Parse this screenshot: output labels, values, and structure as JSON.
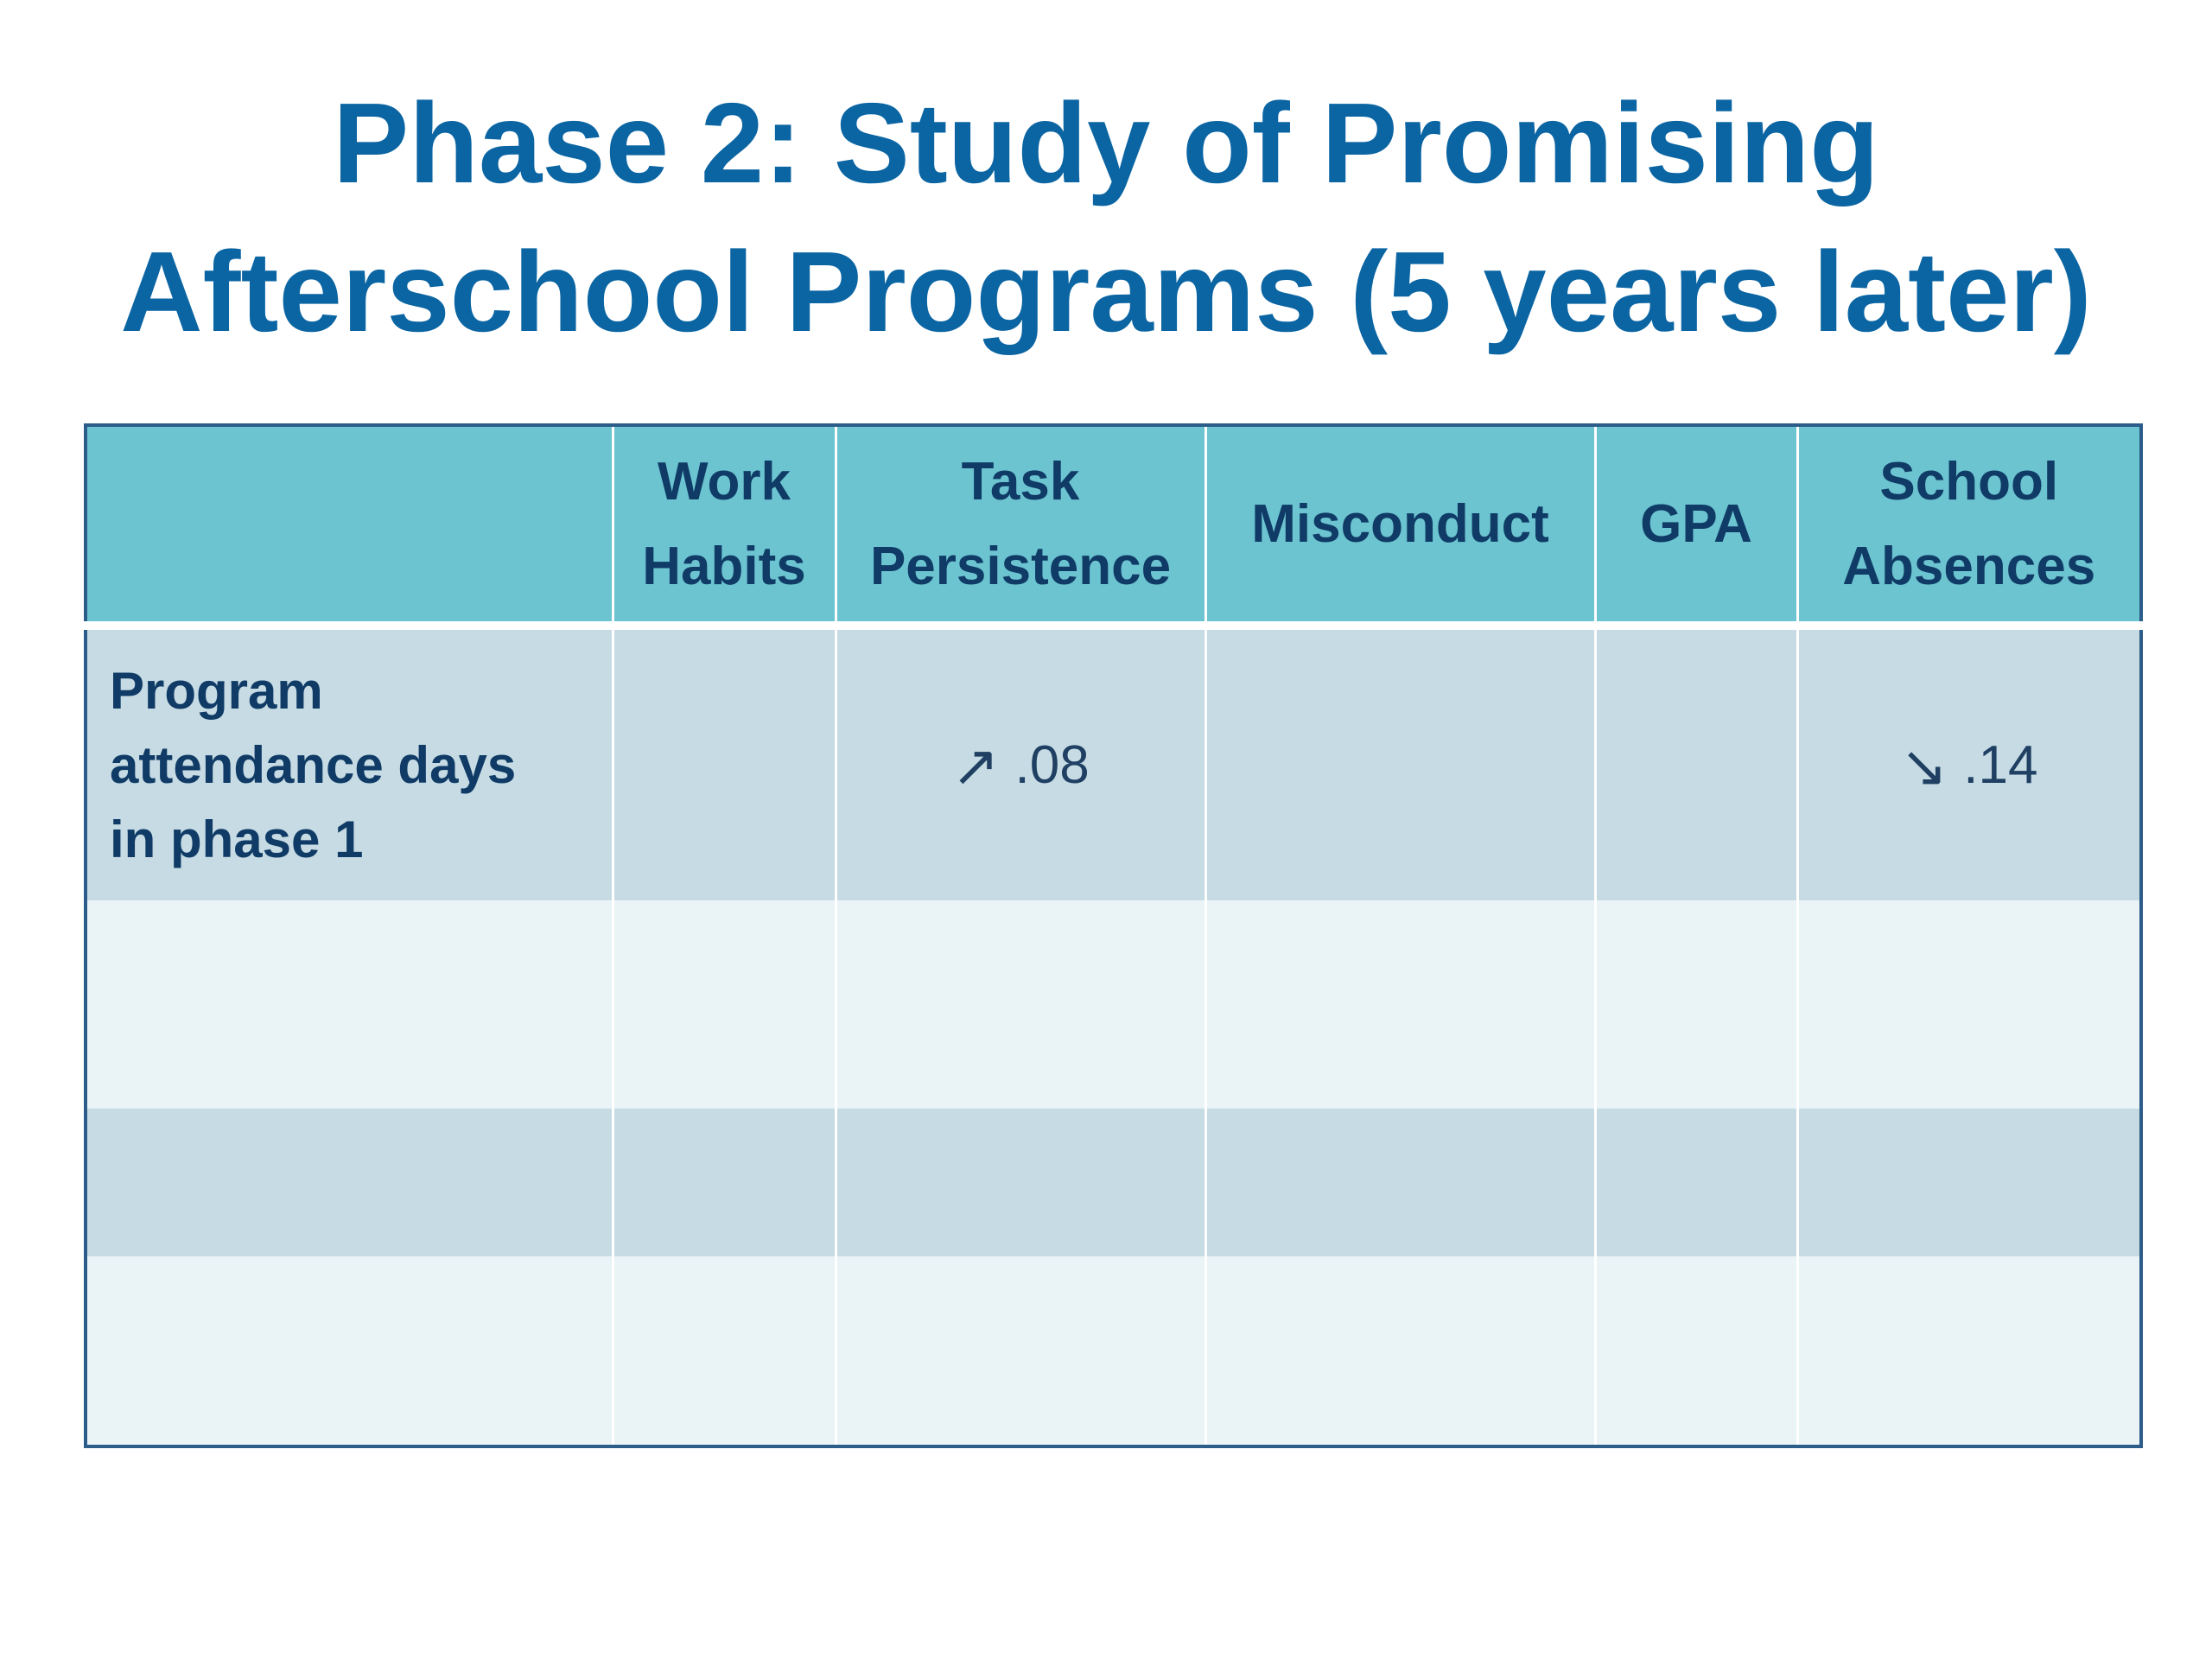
{
  "slide": {
    "title_line1": "Phase 2:  Study of Promising",
    "title_line2": "Afterschool Programs (5 years later)"
  },
  "table": {
    "headers": [
      {
        "line1": "",
        "line2": ""
      },
      {
        "line1": "Work",
        "line2": "Habits"
      },
      {
        "line1": "Task",
        "line2": "Persistence"
      },
      {
        "line1": "Misconduct",
        "line2": ""
      },
      {
        "line1": "GPA",
        "line2": ""
      },
      {
        "line1": "School",
        "line2": "Absences"
      }
    ],
    "rows": [
      {
        "label_lines": [
          "Program",
          "attendance days",
          "in phase 1"
        ],
        "cells": [
          {
            "arrow": "",
            "value": ""
          },
          {
            "arrow": "↗",
            "arrow_icon": "arrow-up-right-icon",
            "value": ".08"
          },
          {
            "arrow": "",
            "value": ""
          },
          {
            "arrow": "",
            "value": ""
          },
          {
            "arrow": "↘",
            "arrow_icon": "arrow-down-right-icon",
            "value": ".14"
          }
        ]
      },
      {
        "label_lines": [
          "",
          "",
          ""
        ],
        "cells": []
      },
      {
        "label_lines": [
          "",
          "",
          ""
        ],
        "cells": []
      },
      {
        "label_lines": [
          "",
          "",
          ""
        ],
        "cells": []
      }
    ]
  },
  "colors": {
    "title": "#0b65a3",
    "header_bg": "#6cc4d0",
    "header_text": "#0f3b66",
    "row_dark": "#c6dbe3",
    "row_light": "#eaf3f6",
    "table_border": "#2b5c8a"
  }
}
